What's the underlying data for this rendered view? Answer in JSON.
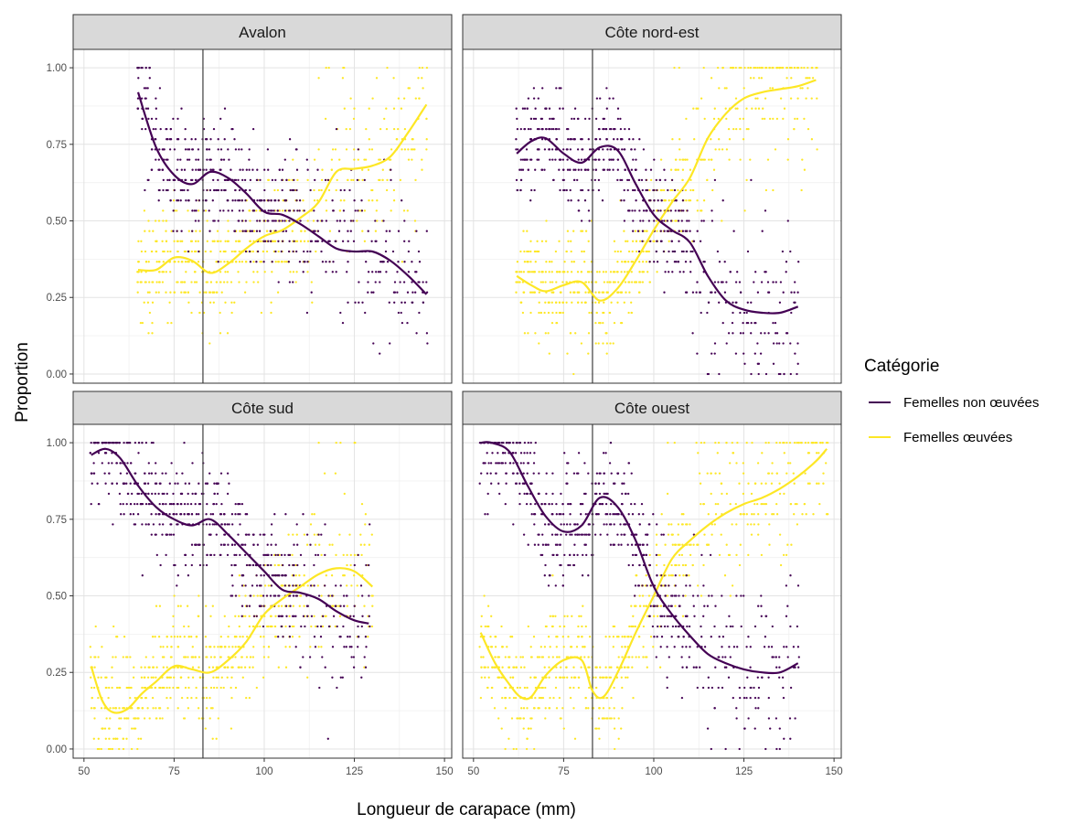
{
  "chart_data": {
    "type": "scatter",
    "xlabel": "Longueur de carapace (mm)",
    "ylabel": "Proportion",
    "xlim": [
      47,
      152
    ],
    "ylim": [
      -0.03,
      1.06
    ],
    "x_ticks": [
      50,
      75,
      100,
      125,
      150
    ],
    "y_ticks": [
      0.0,
      0.25,
      0.5,
      0.75,
      1.0
    ],
    "x_tick_labels": [
      "50",
      "75",
      "100",
      "125",
      "150"
    ],
    "y_tick_labels": [
      "0.00",
      "0.25",
      "0.50",
      "0.75",
      "1.00"
    ],
    "vline_x": 83,
    "grid": true,
    "legend": {
      "title": "Catégorie",
      "placement": "right",
      "entries": [
        {
          "label": "Femelles non œuvées",
          "color": "#440154"
        },
        {
          "label": "Femelles œuvées",
          "color": "#FDE725"
        }
      ]
    },
    "colors": {
      "non_oeuvees": "#440154",
      "oeuvees": "#FDE725"
    },
    "panels": [
      {
        "title": "Avalon",
        "non_oeuvees": {
          "range": [
            65,
            145
          ],
          "x": [
            65,
            70,
            75,
            80,
            85,
            90,
            95,
            100,
            105,
            110,
            115,
            120,
            125,
            130,
            135,
            140,
            145
          ],
          "y": [
            0.92,
            0.74,
            0.65,
            0.62,
            0.66,
            0.64,
            0.59,
            0.53,
            0.52,
            0.49,
            0.45,
            0.41,
            0.4,
            0.4,
            0.37,
            0.32,
            0.26
          ]
        },
        "oeuvees": {
          "range": [
            65,
            145
          ],
          "x": [
            65,
            70,
            75,
            80,
            85,
            90,
            95,
            100,
            105,
            110,
            115,
            120,
            125,
            130,
            135,
            140,
            145
          ],
          "y": [
            0.34,
            0.34,
            0.38,
            0.37,
            0.33,
            0.36,
            0.41,
            0.45,
            0.47,
            0.51,
            0.56,
            0.66,
            0.67,
            0.68,
            0.71,
            0.79,
            0.88
          ]
        }
      },
      {
        "title": "Côte nord-est",
        "non_oeuvees": {
          "range": [
            62,
            140
          ],
          "x": [
            62,
            66,
            70,
            75,
            80,
            85,
            90,
            95,
            100,
            105,
            110,
            115,
            120,
            125,
            130,
            135,
            140
          ],
          "y": [
            0.72,
            0.76,
            0.77,
            0.72,
            0.69,
            0.74,
            0.73,
            0.62,
            0.52,
            0.47,
            0.43,
            0.32,
            0.24,
            0.21,
            0.2,
            0.2,
            0.22
          ]
        },
        "oeuvees": {
          "range": [
            62,
            145
          ],
          "x": [
            62,
            66,
            70,
            75,
            80,
            85,
            90,
            95,
            100,
            105,
            110,
            115,
            120,
            125,
            130,
            135,
            140,
            145
          ],
          "y": [
            0.32,
            0.29,
            0.27,
            0.29,
            0.3,
            0.24,
            0.28,
            0.37,
            0.47,
            0.56,
            0.64,
            0.77,
            0.85,
            0.9,
            0.92,
            0.93,
            0.94,
            0.96
          ]
        }
      },
      {
        "title": "Côte sud",
        "non_oeuvees": {
          "range": [
            52,
            129
          ],
          "x": [
            52,
            56,
            60,
            65,
            70,
            75,
            80,
            85,
            90,
            95,
            100,
            105,
            110,
            115,
            120,
            125,
            129
          ],
          "y": [
            0.96,
            0.98,
            0.95,
            0.86,
            0.79,
            0.75,
            0.73,
            0.75,
            0.7,
            0.64,
            0.58,
            0.52,
            0.51,
            0.49,
            0.45,
            0.42,
            0.41
          ]
        },
        "oeuvees": {
          "range": [
            52,
            130
          ],
          "x": [
            52,
            55,
            58,
            62,
            66,
            70,
            75,
            80,
            85,
            90,
            95,
            100,
            105,
            110,
            115,
            120,
            125,
            130
          ],
          "y": [
            0.27,
            0.16,
            0.12,
            0.13,
            0.18,
            0.22,
            0.27,
            0.26,
            0.25,
            0.29,
            0.35,
            0.44,
            0.49,
            0.53,
            0.57,
            0.59,
            0.58,
            0.53
          ]
        }
      },
      {
        "title": "Côte ouest",
        "non_oeuvees": {
          "range": [
            52,
            140
          ],
          "x": [
            52,
            55,
            60,
            65,
            70,
            75,
            80,
            85,
            90,
            95,
            100,
            105,
            110,
            115,
            120,
            125,
            130,
            135,
            140
          ],
          "y": [
            1.0,
            1.0,
            0.97,
            0.86,
            0.76,
            0.71,
            0.73,
            0.82,
            0.79,
            0.68,
            0.53,
            0.44,
            0.37,
            0.31,
            0.28,
            0.26,
            0.25,
            0.25,
            0.28
          ]
        },
        "oeuvees": {
          "range": [
            52,
            148
          ],
          "x": [
            52,
            56,
            60,
            63,
            66,
            70,
            75,
            80,
            83,
            86,
            90,
            95,
            100,
            105,
            110,
            115,
            120,
            125,
            130,
            135,
            140,
            145,
            148
          ],
          "y": [
            0.38,
            0.28,
            0.21,
            0.17,
            0.17,
            0.24,
            0.29,
            0.29,
            0.19,
            0.17,
            0.25,
            0.38,
            0.5,
            0.62,
            0.68,
            0.73,
            0.77,
            0.8,
            0.82,
            0.85,
            0.89,
            0.94,
            0.98
          ]
        }
      }
    ]
  }
}
